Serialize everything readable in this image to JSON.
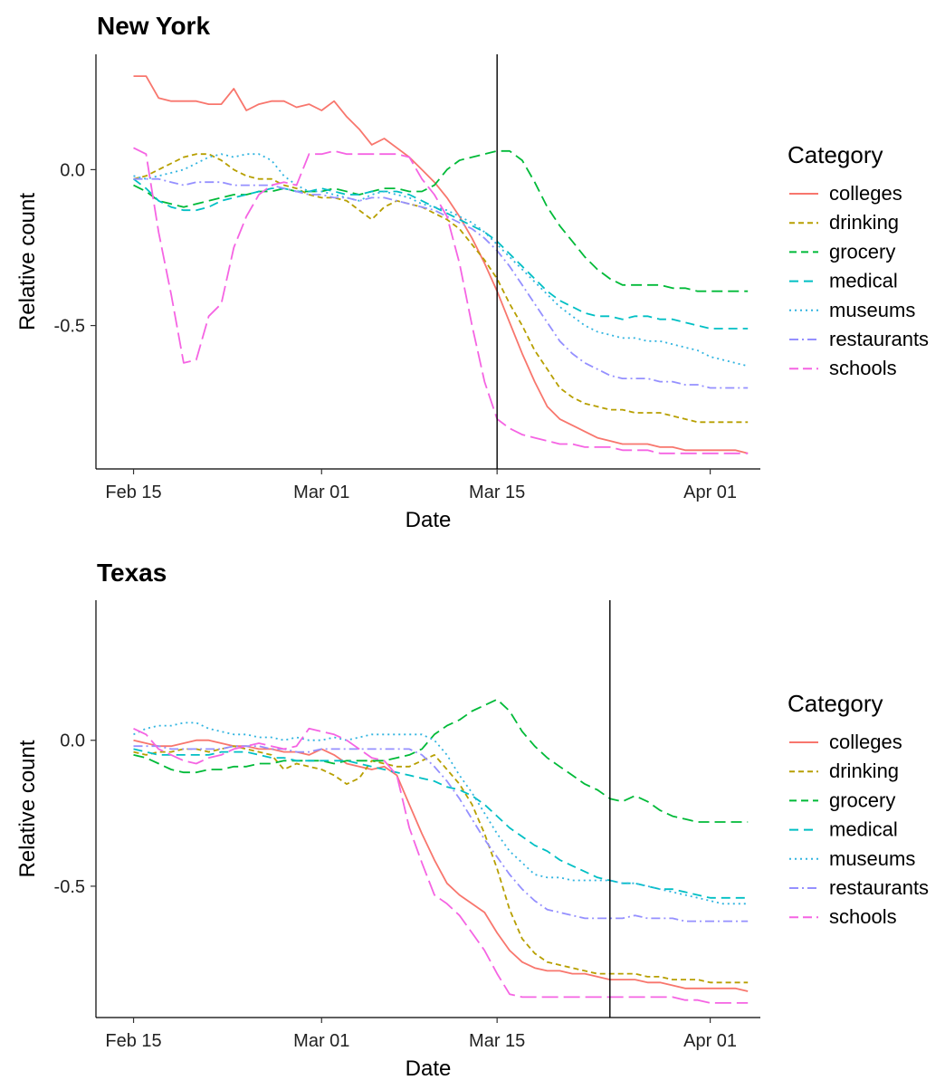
{
  "chart_data": [
    {
      "type": "line",
      "title": "New York",
      "xlabel": "Date",
      "ylabel": "Relative count",
      "x_start": "2020-02-15",
      "xticks": [
        {
          "date": "2020-02-15",
          "label": "Feb 15"
        },
        {
          "date": "2020-03-01",
          "label": "Mar 01"
        },
        {
          "date": "2020-03-15",
          "label": "Mar 15"
        },
        {
          "date": "2020-04-01",
          "label": "Apr 01"
        }
      ],
      "yticks": [
        0.0,
        -0.5
      ],
      "ytick_labels": [
        "0.0",
        "-0.5"
      ],
      "xlim": [
        "2020-02-12",
        "2020-04-05"
      ],
      "ylim": [
        -0.96,
        0.37
      ],
      "vline": "2020-03-15",
      "legend_title": "Category",
      "legend_position": "right",
      "series": [
        {
          "name": "colleges",
          "color": "#F8766D",
          "dash": "solid",
          "values": [
            0.3,
            0.3,
            0.23,
            0.22,
            0.22,
            0.22,
            0.21,
            0.21,
            0.26,
            0.19,
            0.21,
            0.22,
            0.22,
            0.2,
            0.21,
            0.19,
            0.22,
            0.17,
            0.13,
            0.08,
            0.1,
            0.07,
            0.04,
            0.0,
            -0.04,
            -0.09,
            -0.15,
            -0.22,
            -0.3,
            -0.39,
            -0.49,
            -0.59,
            -0.68,
            -0.76,
            -0.8,
            -0.82,
            -0.84,
            -0.86,
            -0.87,
            -0.88,
            -0.88,
            -0.88,
            -0.89,
            -0.89,
            -0.9,
            -0.9,
            -0.9,
            -0.9,
            -0.9,
            -0.91
          ]
        },
        {
          "name": "drinking",
          "color": "#B79F00",
          "dash": "6,4",
          "values": [
            -0.03,
            -0.02,
            0.0,
            0.02,
            0.04,
            0.05,
            0.05,
            0.03,
            0.0,
            -0.02,
            -0.03,
            -0.03,
            -0.05,
            -0.06,
            -0.08,
            -0.09,
            -0.09,
            -0.1,
            -0.13,
            -0.16,
            -0.12,
            -0.1,
            -0.11,
            -0.12,
            -0.14,
            -0.16,
            -0.19,
            -0.24,
            -0.29,
            -0.35,
            -0.43,
            -0.5,
            -0.58,
            -0.64,
            -0.7,
            -0.73,
            -0.75,
            -0.76,
            -0.77,
            -0.77,
            -0.78,
            -0.78,
            -0.78,
            -0.79,
            -0.8,
            -0.81,
            -0.81,
            -0.81,
            -0.81,
            -0.81
          ]
        },
        {
          "name": "grocery",
          "color": "#00BA38",
          "dash": "12,6",
          "values": [
            -0.05,
            -0.07,
            -0.1,
            -0.11,
            -0.12,
            -0.11,
            -0.1,
            -0.09,
            -0.08,
            -0.08,
            -0.07,
            -0.07,
            -0.06,
            -0.07,
            -0.07,
            -0.07,
            -0.06,
            -0.07,
            -0.08,
            -0.07,
            -0.06,
            -0.06,
            -0.07,
            -0.07,
            -0.05,
            0.0,
            0.03,
            0.04,
            0.05,
            0.06,
            0.06,
            0.03,
            -0.04,
            -0.12,
            -0.18,
            -0.23,
            -0.28,
            -0.32,
            -0.35,
            -0.37,
            -0.37,
            -0.37,
            -0.37,
            -0.38,
            -0.38,
            -0.39,
            -0.39,
            -0.39,
            -0.39,
            -0.39
          ]
        },
        {
          "name": "medical",
          "color": "#00BFC4",
          "dash": "10,6",
          "values": [
            -0.03,
            -0.06,
            -0.1,
            -0.12,
            -0.13,
            -0.13,
            -0.12,
            -0.1,
            -0.09,
            -0.08,
            -0.07,
            -0.06,
            -0.06,
            -0.07,
            -0.07,
            -0.06,
            -0.07,
            -0.08,
            -0.08,
            -0.07,
            -0.07,
            -0.07,
            -0.08,
            -0.1,
            -0.12,
            -0.14,
            -0.16,
            -0.18,
            -0.2,
            -0.23,
            -0.27,
            -0.31,
            -0.35,
            -0.39,
            -0.42,
            -0.44,
            -0.46,
            -0.47,
            -0.47,
            -0.48,
            -0.47,
            -0.47,
            -0.48,
            -0.48,
            -0.49,
            -0.5,
            -0.51,
            -0.51,
            -0.51,
            -0.51
          ]
        },
        {
          "name": "museums",
          "color": "#30B4E0",
          "dash": "2,4",
          "values": [
            -0.02,
            -0.03,
            -0.02,
            -0.01,
            0.0,
            0.02,
            0.04,
            0.05,
            0.04,
            0.05,
            0.05,
            0.03,
            -0.02,
            -0.05,
            -0.07,
            -0.07,
            -0.08,
            -0.09,
            -0.1,
            -0.08,
            -0.07,
            -0.08,
            -0.09,
            -0.11,
            -0.12,
            -0.13,
            -0.15,
            -0.17,
            -0.2,
            -0.24,
            -0.28,
            -0.32,
            -0.36,
            -0.4,
            -0.44,
            -0.47,
            -0.5,
            -0.52,
            -0.53,
            -0.54,
            -0.54,
            -0.55,
            -0.55,
            -0.56,
            -0.57,
            -0.58,
            -0.6,
            -0.61,
            -0.62,
            -0.63
          ]
        },
        {
          "name": "restaurants",
          "color": "#9590FF",
          "dash": "10,4,2,4",
          "values": [
            -0.03,
            -0.03,
            -0.03,
            -0.04,
            -0.05,
            -0.04,
            -0.04,
            -0.04,
            -0.05,
            -0.05,
            -0.05,
            -0.05,
            -0.06,
            -0.07,
            -0.08,
            -0.08,
            -0.09,
            -0.09,
            -0.1,
            -0.09,
            -0.09,
            -0.1,
            -0.11,
            -0.12,
            -0.13,
            -0.15,
            -0.17,
            -0.19,
            -0.22,
            -0.26,
            -0.31,
            -0.37,
            -0.43,
            -0.49,
            -0.55,
            -0.59,
            -0.62,
            -0.64,
            -0.66,
            -0.67,
            -0.67,
            -0.67,
            -0.68,
            -0.68,
            -0.69,
            -0.69,
            -0.7,
            -0.7,
            -0.7,
            -0.7
          ]
        },
        {
          "name": "schools",
          "color": "#F564E3",
          "dash": "18,6",
          "values": [
            0.07,
            0.05,
            -0.2,
            -0.4,
            -0.62,
            -0.61,
            -0.47,
            -0.43,
            -0.25,
            -0.15,
            -0.08,
            -0.05,
            -0.04,
            -0.05,
            0.05,
            0.05,
            0.06,
            0.05,
            0.05,
            0.05,
            0.05,
            0.05,
            0.04,
            -0.03,
            -0.08,
            -0.15,
            -0.3,
            -0.5,
            -0.68,
            -0.8,
            -0.83,
            -0.85,
            -0.86,
            -0.87,
            -0.88,
            -0.88,
            -0.89,
            -0.89,
            -0.89,
            -0.9,
            -0.9,
            -0.9,
            -0.91,
            -0.91,
            -0.91,
            -0.91,
            -0.91,
            -0.91,
            -0.91,
            -0.91
          ]
        }
      ]
    },
    {
      "type": "line",
      "title": "Texas",
      "xlabel": "Date",
      "ylabel": "Relative count",
      "x_start": "2020-02-15",
      "xticks": [
        {
          "date": "2020-02-15",
          "label": "Feb 15"
        },
        {
          "date": "2020-03-01",
          "label": "Mar 01"
        },
        {
          "date": "2020-03-15",
          "label": "Mar 15"
        },
        {
          "date": "2020-04-01",
          "label": "Apr 01"
        }
      ],
      "yticks": [
        0.0,
        -0.5
      ],
      "ytick_labels": [
        "0.0",
        "-0.5"
      ],
      "xlim": [
        "2020-02-12",
        "2020-04-05"
      ],
      "ylim": [
        -0.95,
        0.48
      ],
      "vline": "2020-03-24",
      "legend_title": "Category",
      "legend_position": "right",
      "series": [
        {
          "name": "colleges",
          "color": "#F8766D",
          "dash": "solid",
          "values": [
            0.0,
            -0.01,
            -0.02,
            -0.02,
            -0.01,
            0.0,
            0.0,
            -0.01,
            -0.02,
            -0.02,
            -0.03,
            -0.03,
            -0.04,
            -0.04,
            -0.05,
            -0.03,
            -0.05,
            -0.08,
            -0.09,
            -0.1,
            -0.09,
            -0.12,
            -0.22,
            -0.32,
            -0.41,
            -0.49,
            -0.53,
            -0.56,
            -0.59,
            -0.66,
            -0.72,
            -0.76,
            -0.78,
            -0.79,
            -0.79,
            -0.8,
            -0.8,
            -0.81,
            -0.82,
            -0.82,
            -0.82,
            -0.83,
            -0.83,
            -0.84,
            -0.85,
            -0.85,
            -0.85,
            -0.85,
            -0.85,
            -0.86
          ]
        },
        {
          "name": "drinking",
          "color": "#B79F00",
          "dash": "6,4",
          "values": [
            -0.04,
            -0.05,
            -0.04,
            -0.04,
            -0.03,
            -0.03,
            -0.04,
            -0.03,
            -0.02,
            -0.03,
            -0.04,
            -0.05,
            -0.1,
            -0.08,
            -0.09,
            -0.1,
            -0.12,
            -0.15,
            -0.13,
            -0.07,
            -0.08,
            -0.09,
            -0.09,
            -0.07,
            -0.05,
            -0.1,
            -0.15,
            -0.22,
            -0.32,
            -0.44,
            -0.58,
            -0.68,
            -0.73,
            -0.76,
            -0.77,
            -0.78,
            -0.79,
            -0.8,
            -0.8,
            -0.8,
            -0.8,
            -0.81,
            -0.81,
            -0.82,
            -0.82,
            -0.82,
            -0.83,
            -0.83,
            -0.83,
            -0.83
          ]
        },
        {
          "name": "grocery",
          "color": "#00BA38",
          "dash": "12,6",
          "values": [
            -0.05,
            -0.06,
            -0.08,
            -0.1,
            -0.11,
            -0.11,
            -0.1,
            -0.1,
            -0.09,
            -0.09,
            -0.08,
            -0.08,
            -0.07,
            -0.07,
            -0.07,
            -0.07,
            -0.08,
            -0.07,
            -0.07,
            -0.07,
            -0.07,
            -0.06,
            -0.05,
            -0.03,
            0.02,
            0.05,
            0.07,
            0.1,
            0.12,
            0.14,
            0.1,
            0.03,
            -0.02,
            -0.06,
            -0.09,
            -0.12,
            -0.15,
            -0.17,
            -0.2,
            -0.21,
            -0.19,
            -0.21,
            -0.24,
            -0.26,
            -0.27,
            -0.28,
            -0.28,
            -0.28,
            -0.28,
            -0.28
          ]
        },
        {
          "name": "medical",
          "color": "#00BFC4",
          "dash": "10,6",
          "values": [
            -0.03,
            -0.04,
            -0.05,
            -0.05,
            -0.05,
            -0.05,
            -0.05,
            -0.04,
            -0.04,
            -0.04,
            -0.05,
            -0.06,
            -0.06,
            -0.07,
            -0.07,
            -0.07,
            -0.07,
            -0.07,
            -0.08,
            -0.09,
            -0.1,
            -0.11,
            -0.12,
            -0.13,
            -0.14,
            -0.16,
            -0.17,
            -0.19,
            -0.22,
            -0.26,
            -0.3,
            -0.33,
            -0.36,
            -0.38,
            -0.41,
            -0.43,
            -0.45,
            -0.47,
            -0.48,
            -0.49,
            -0.49,
            -0.5,
            -0.51,
            -0.51,
            -0.52,
            -0.53,
            -0.54,
            -0.54,
            -0.54,
            -0.54
          ]
        },
        {
          "name": "museums",
          "color": "#30B4E0",
          "dash": "2,4",
          "values": [
            0.02,
            0.04,
            0.05,
            0.05,
            0.06,
            0.06,
            0.04,
            0.03,
            0.02,
            0.02,
            0.01,
            0.01,
            0.0,
            0.01,
            0.0,
            0.0,
            0.01,
            0.0,
            0.01,
            0.02,
            0.02,
            0.02,
            0.02,
            0.02,
            0.0,
            -0.05,
            -0.12,
            -0.18,
            -0.25,
            -0.32,
            -0.38,
            -0.42,
            -0.46,
            -0.47,
            -0.47,
            -0.48,
            -0.48,
            -0.48,
            -0.48,
            -0.49,
            -0.49,
            -0.5,
            -0.51,
            -0.52,
            -0.53,
            -0.54,
            -0.55,
            -0.56,
            -0.56,
            -0.56
          ]
        },
        {
          "name": "restaurants",
          "color": "#9590FF",
          "dash": "10,4,2,4",
          "values": [
            -0.02,
            -0.02,
            -0.02,
            -0.03,
            -0.03,
            -0.03,
            -0.03,
            -0.03,
            -0.02,
            -0.02,
            -0.02,
            -0.03,
            -0.03,
            -0.04,
            -0.04,
            -0.03,
            -0.03,
            -0.03,
            -0.03,
            -0.03,
            -0.03,
            -0.03,
            -0.03,
            -0.05,
            -0.09,
            -0.14,
            -0.2,
            -0.27,
            -0.34,
            -0.4,
            -0.46,
            -0.51,
            -0.55,
            -0.58,
            -0.59,
            -0.6,
            -0.61,
            -0.61,
            -0.61,
            -0.61,
            -0.6,
            -0.61,
            -0.61,
            -0.61,
            -0.62,
            -0.62,
            -0.62,
            -0.62,
            -0.62,
            -0.62
          ]
        },
        {
          "name": "schools",
          "color": "#F564E3",
          "dash": "18,6",
          "values": [
            0.04,
            0.02,
            -0.03,
            -0.05,
            -0.07,
            -0.08,
            -0.06,
            -0.05,
            -0.03,
            -0.02,
            -0.01,
            -0.02,
            -0.03,
            -0.02,
            0.04,
            0.03,
            0.02,
            0.0,
            -0.03,
            -0.06,
            -0.07,
            -0.12,
            -0.3,
            -0.42,
            -0.53,
            -0.56,
            -0.6,
            -0.66,
            -0.72,
            -0.8,
            -0.87,
            -0.88,
            -0.88,
            -0.88,
            -0.88,
            -0.88,
            -0.88,
            -0.88,
            -0.88,
            -0.88,
            -0.88,
            -0.88,
            -0.88,
            -0.88,
            -0.89,
            -0.89,
            -0.9,
            -0.9,
            -0.9,
            -0.9
          ]
        }
      ]
    }
  ]
}
